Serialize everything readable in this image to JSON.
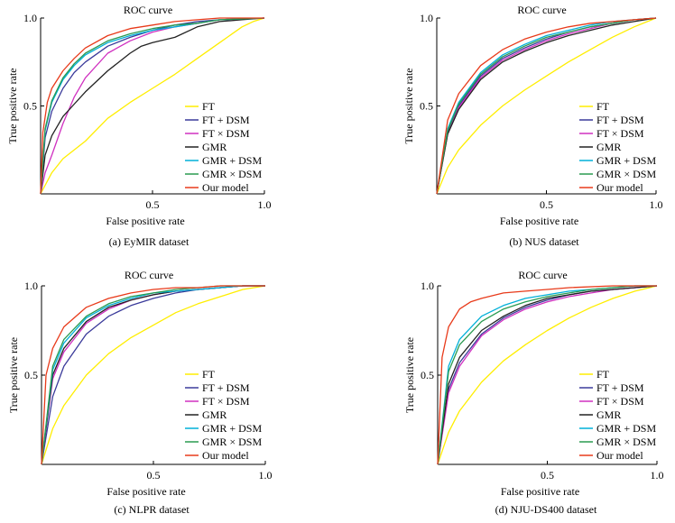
{
  "chart_data": [
    {
      "type": "line",
      "title": "ROC curve",
      "xlabel": "False positive rate",
      "ylabel": "True positive rate",
      "caption": "(a) EyMIR dataset",
      "xlim": [
        0,
        1
      ],
      "ylim": [
        0,
        1
      ],
      "xticks": [
        "0.5",
        "1.0"
      ],
      "yticks": [
        "0.5",
        "1.0"
      ],
      "grid": false,
      "legend_position": "bottom-right",
      "series": [
        {
          "name": "FT",
          "color": "#ffee00",
          "x": [
            0,
            0.05,
            0.1,
            0.2,
            0.3,
            0.4,
            0.5,
            0.6,
            0.7,
            0.8,
            0.9,
            0.95,
            1.0
          ],
          "y": [
            0,
            0.12,
            0.2,
            0.3,
            0.43,
            0.52,
            0.6,
            0.68,
            0.77,
            0.86,
            0.95,
            0.98,
            1.0
          ]
        },
        {
          "name": "FT + DSM",
          "color": "#3a3a9a",
          "x": [
            0,
            0.02,
            0.05,
            0.1,
            0.15,
            0.2,
            0.3,
            0.4,
            0.5,
            0.6,
            0.7,
            0.8,
            1.0
          ],
          "y": [
            0,
            0.32,
            0.47,
            0.6,
            0.69,
            0.75,
            0.84,
            0.89,
            0.93,
            0.96,
            0.98,
            0.99,
            1.0
          ]
        },
        {
          "name": "FT × DSM",
          "color": "#d030c0",
          "x": [
            0,
            0.02,
            0.05,
            0.1,
            0.15,
            0.2,
            0.3,
            0.4,
            0.5,
            0.6,
            0.7,
            0.8,
            1.0
          ],
          "y": [
            0,
            0.12,
            0.22,
            0.4,
            0.55,
            0.66,
            0.8,
            0.87,
            0.92,
            0.95,
            0.97,
            0.99,
            1.0
          ]
        },
        {
          "name": "GMR",
          "color": "#222222",
          "x": [
            0,
            0.02,
            0.05,
            0.1,
            0.15,
            0.2,
            0.3,
            0.4,
            0.45,
            0.5,
            0.6,
            0.7,
            0.8,
            0.9,
            1.0
          ],
          "y": [
            0,
            0.22,
            0.33,
            0.44,
            0.51,
            0.58,
            0.7,
            0.8,
            0.84,
            0.86,
            0.89,
            0.95,
            0.98,
            0.99,
            1.0
          ]
        },
        {
          "name": "GMR + DSM",
          "color": "#00b0d8",
          "x": [
            0,
            0.02,
            0.05,
            0.1,
            0.15,
            0.2,
            0.3,
            0.4,
            0.5,
            0.6,
            0.7,
            0.8,
            1.0
          ],
          "y": [
            0,
            0.36,
            0.52,
            0.65,
            0.73,
            0.79,
            0.86,
            0.9,
            0.93,
            0.95,
            0.97,
            0.99,
            1.0
          ]
        },
        {
          "name": "GMR × DSM",
          "color": "#2a9a50",
          "x": [
            0,
            0.02,
            0.05,
            0.1,
            0.15,
            0.2,
            0.3,
            0.4,
            0.5,
            0.6,
            0.7,
            0.8,
            1.0
          ],
          "y": [
            0,
            0.37,
            0.53,
            0.66,
            0.74,
            0.8,
            0.87,
            0.91,
            0.94,
            0.96,
            0.97,
            0.99,
            1.0
          ]
        },
        {
          "name": "Our model",
          "color": "#e83a1a",
          "x": [
            0,
            0.01,
            0.03,
            0.05,
            0.1,
            0.15,
            0.2,
            0.3,
            0.4,
            0.5,
            0.6,
            0.7,
            0.8,
            1.0
          ],
          "y": [
            0,
            0.35,
            0.52,
            0.6,
            0.7,
            0.77,
            0.83,
            0.9,
            0.94,
            0.96,
            0.98,
            0.99,
            1.0,
            1.0
          ]
        }
      ]
    },
    {
      "type": "line",
      "title": "ROC curve",
      "xlabel": "False positive rate",
      "ylabel": "True positive rate",
      "caption": "(b) NUS dataset",
      "xlim": [
        0,
        1
      ],
      "ylim": [
        0,
        1
      ],
      "xticks": [
        "0.5",
        "1.0"
      ],
      "yticks": [
        "0.5",
        "1.0"
      ],
      "grid": false,
      "legend_position": "bottom-right",
      "series": [
        {
          "name": "FT",
          "color": "#ffee00",
          "x": [
            0,
            0.05,
            0.1,
            0.2,
            0.3,
            0.4,
            0.5,
            0.6,
            0.7,
            0.8,
            0.9,
            1.0
          ],
          "y": [
            0,
            0.15,
            0.25,
            0.39,
            0.5,
            0.59,
            0.67,
            0.75,
            0.82,
            0.89,
            0.95,
            1.0
          ]
        },
        {
          "name": "FT + DSM",
          "color": "#3a3a9a",
          "x": [
            0,
            0.05,
            0.1,
            0.2,
            0.3,
            0.4,
            0.5,
            0.6,
            0.7,
            0.8,
            0.9,
            1.0
          ],
          "y": [
            0,
            0.35,
            0.5,
            0.67,
            0.77,
            0.83,
            0.88,
            0.92,
            0.95,
            0.97,
            0.99,
            1.0
          ]
        },
        {
          "name": "FT × DSM",
          "color": "#d030c0",
          "x": [
            0,
            0.05,
            0.1,
            0.2,
            0.3,
            0.4,
            0.5,
            0.6,
            0.7,
            0.8,
            0.9,
            1.0
          ],
          "y": [
            0,
            0.34,
            0.49,
            0.66,
            0.76,
            0.82,
            0.87,
            0.91,
            0.94,
            0.97,
            0.99,
            1.0
          ]
        },
        {
          "name": "GMR",
          "color": "#222222",
          "x": [
            0,
            0.05,
            0.1,
            0.2,
            0.3,
            0.4,
            0.5,
            0.6,
            0.7,
            0.8,
            0.9,
            1.0
          ],
          "y": [
            0,
            0.34,
            0.48,
            0.65,
            0.75,
            0.81,
            0.86,
            0.9,
            0.93,
            0.96,
            0.98,
            1.0
          ]
        },
        {
          "name": "GMR + DSM",
          "color": "#00b0d8",
          "x": [
            0,
            0.05,
            0.1,
            0.2,
            0.3,
            0.4,
            0.5,
            0.6,
            0.7,
            0.8,
            0.9,
            1.0
          ],
          "y": [
            0,
            0.37,
            0.52,
            0.69,
            0.79,
            0.85,
            0.9,
            0.93,
            0.96,
            0.98,
            0.99,
            1.0
          ]
        },
        {
          "name": "GMR × DSM",
          "color": "#2a9a50",
          "x": [
            0,
            0.05,
            0.1,
            0.2,
            0.3,
            0.4,
            0.5,
            0.6,
            0.7,
            0.8,
            0.9,
            1.0
          ],
          "y": [
            0,
            0.36,
            0.51,
            0.68,
            0.78,
            0.84,
            0.89,
            0.92,
            0.95,
            0.97,
            0.99,
            1.0
          ]
        },
        {
          "name": "Our model",
          "color": "#e83a1a",
          "x": [
            0,
            0.05,
            0.1,
            0.2,
            0.3,
            0.4,
            0.5,
            0.6,
            0.7,
            0.8,
            0.9,
            1.0
          ],
          "y": [
            0,
            0.42,
            0.57,
            0.73,
            0.82,
            0.88,
            0.92,
            0.95,
            0.97,
            0.98,
            0.99,
            1.0
          ]
        }
      ]
    },
    {
      "type": "line",
      "title": "ROC curve",
      "xlabel": "False positive rate",
      "ylabel": "True positive rate",
      "caption": "(c) NLPR dataset",
      "xlim": [
        0,
        1
      ],
      "ylim": [
        0,
        1
      ],
      "xticks": [
        "0.5",
        "1.0"
      ],
      "yticks": [
        "0.5",
        "1.0"
      ],
      "grid": false,
      "legend_position": "bottom-right",
      "series": [
        {
          "name": "FT",
          "color": "#ffee00",
          "x": [
            0,
            0.05,
            0.1,
            0.2,
            0.3,
            0.4,
            0.5,
            0.6,
            0.7,
            0.8,
            0.9,
            1.0
          ],
          "y": [
            0,
            0.2,
            0.33,
            0.5,
            0.62,
            0.71,
            0.78,
            0.85,
            0.9,
            0.94,
            0.98,
            1.0
          ]
        },
        {
          "name": "FT + DSM",
          "color": "#3a3a9a",
          "x": [
            0,
            0.05,
            0.1,
            0.2,
            0.3,
            0.4,
            0.5,
            0.6,
            0.7,
            0.8,
            0.9,
            1.0
          ],
          "y": [
            0,
            0.38,
            0.55,
            0.73,
            0.83,
            0.89,
            0.93,
            0.96,
            0.98,
            0.99,
            1.0,
            1.0
          ]
        },
        {
          "name": "FT × DSM",
          "color": "#d030c0",
          "x": [
            0,
            0.05,
            0.1,
            0.2,
            0.3,
            0.4,
            0.5,
            0.6,
            0.7,
            0.8,
            0.9,
            1.0
          ],
          "y": [
            0,
            0.48,
            0.63,
            0.79,
            0.87,
            0.92,
            0.95,
            0.97,
            0.98,
            0.99,
            1.0,
            1.0
          ]
        },
        {
          "name": "GMR",
          "color": "#222222",
          "x": [
            0,
            0.05,
            0.1,
            0.2,
            0.3,
            0.4,
            0.5,
            0.6,
            0.7,
            0.8,
            0.9,
            1.0
          ],
          "y": [
            0,
            0.5,
            0.65,
            0.8,
            0.88,
            0.92,
            0.95,
            0.97,
            0.98,
            0.99,
            1.0,
            1.0
          ]
        },
        {
          "name": "GMR + DSM",
          "color": "#00b0d8",
          "x": [
            0,
            0.05,
            0.1,
            0.2,
            0.3,
            0.4,
            0.5,
            0.6,
            0.7,
            0.8,
            0.9,
            1.0
          ],
          "y": [
            0,
            0.53,
            0.68,
            0.82,
            0.89,
            0.93,
            0.96,
            0.97,
            0.98,
            0.99,
            1.0,
            1.0
          ]
        },
        {
          "name": "GMR × DSM",
          "color": "#2a9a50",
          "x": [
            0,
            0.05,
            0.1,
            0.2,
            0.3,
            0.4,
            0.5,
            0.6,
            0.7,
            0.8,
            0.9,
            1.0
          ],
          "y": [
            0,
            0.55,
            0.7,
            0.83,
            0.9,
            0.94,
            0.96,
            0.98,
            0.99,
            1.0,
            1.0,
            1.0
          ]
        },
        {
          "name": "Our model",
          "color": "#e83a1a",
          "x": [
            0,
            0.02,
            0.05,
            0.1,
            0.2,
            0.3,
            0.4,
            0.5,
            0.6,
            0.7,
            0.8,
            0.9,
            1.0
          ],
          "y": [
            0,
            0.5,
            0.65,
            0.77,
            0.88,
            0.93,
            0.96,
            0.98,
            0.99,
            0.99,
            1.0,
            1.0,
            1.0
          ]
        }
      ]
    },
    {
      "type": "line",
      "title": "ROC curve",
      "xlabel": "False positive rate",
      "ylabel": "True positive rate",
      "caption": "(d) NJU-DS400 dataset",
      "xlim": [
        0,
        1
      ],
      "ylim": [
        0,
        1
      ],
      "xticks": [
        "0.5",
        "1.0"
      ],
      "yticks": [
        "0.5",
        "1.0"
      ],
      "grid": false,
      "legend_position": "bottom-right",
      "series": [
        {
          "name": "FT",
          "color": "#ffee00",
          "x": [
            0,
            0.05,
            0.1,
            0.2,
            0.3,
            0.4,
            0.5,
            0.6,
            0.7,
            0.8,
            0.9,
            1.0
          ],
          "y": [
            0,
            0.18,
            0.3,
            0.46,
            0.58,
            0.67,
            0.75,
            0.82,
            0.88,
            0.93,
            0.97,
            1.0
          ]
        },
        {
          "name": "FT + DSM",
          "color": "#3a3a9a",
          "x": [
            0,
            0.05,
            0.1,
            0.2,
            0.3,
            0.4,
            0.5,
            0.6,
            0.7,
            0.8,
            0.9,
            1.0
          ],
          "y": [
            0,
            0.42,
            0.57,
            0.73,
            0.82,
            0.88,
            0.92,
            0.95,
            0.97,
            0.98,
            0.99,
            1.0
          ]
        },
        {
          "name": "FT × DSM",
          "color": "#d030c0",
          "x": [
            0,
            0.05,
            0.1,
            0.2,
            0.3,
            0.4,
            0.5,
            0.6,
            0.7,
            0.8,
            0.9,
            1.0
          ],
          "y": [
            0,
            0.4,
            0.55,
            0.72,
            0.81,
            0.87,
            0.91,
            0.94,
            0.96,
            0.98,
            0.99,
            1.0
          ]
        },
        {
          "name": "GMR",
          "color": "#222222",
          "x": [
            0,
            0.05,
            0.1,
            0.2,
            0.3,
            0.4,
            0.5,
            0.6,
            0.7,
            0.8,
            0.9,
            1.0
          ],
          "y": [
            0,
            0.45,
            0.6,
            0.75,
            0.83,
            0.89,
            0.93,
            0.95,
            0.97,
            0.98,
            0.99,
            1.0
          ]
        },
        {
          "name": "GMR + DSM",
          "color": "#00b0d8",
          "x": [
            0,
            0.05,
            0.1,
            0.2,
            0.3,
            0.4,
            0.5,
            0.6,
            0.7,
            0.8,
            0.9,
            1.0
          ],
          "y": [
            0,
            0.55,
            0.7,
            0.83,
            0.89,
            0.93,
            0.95,
            0.97,
            0.98,
            0.99,
            1.0,
            1.0
          ]
        },
        {
          "name": "GMR × DSM",
          "color": "#2a9a50",
          "x": [
            0,
            0.05,
            0.1,
            0.2,
            0.3,
            0.4,
            0.5,
            0.6,
            0.7,
            0.8,
            0.9,
            1.0
          ],
          "y": [
            0,
            0.52,
            0.67,
            0.8,
            0.87,
            0.91,
            0.94,
            0.96,
            0.98,
            0.99,
            1.0,
            1.0
          ]
        },
        {
          "name": "Our model",
          "color": "#e83a1a",
          "x": [
            0,
            0.02,
            0.05,
            0.1,
            0.15,
            0.2,
            0.3,
            0.4,
            0.5,
            0.6,
            0.8,
            1.0
          ],
          "y": [
            0,
            0.6,
            0.77,
            0.87,
            0.91,
            0.93,
            0.96,
            0.97,
            0.98,
            0.99,
            1.0,
            1.0
          ]
        }
      ]
    }
  ]
}
